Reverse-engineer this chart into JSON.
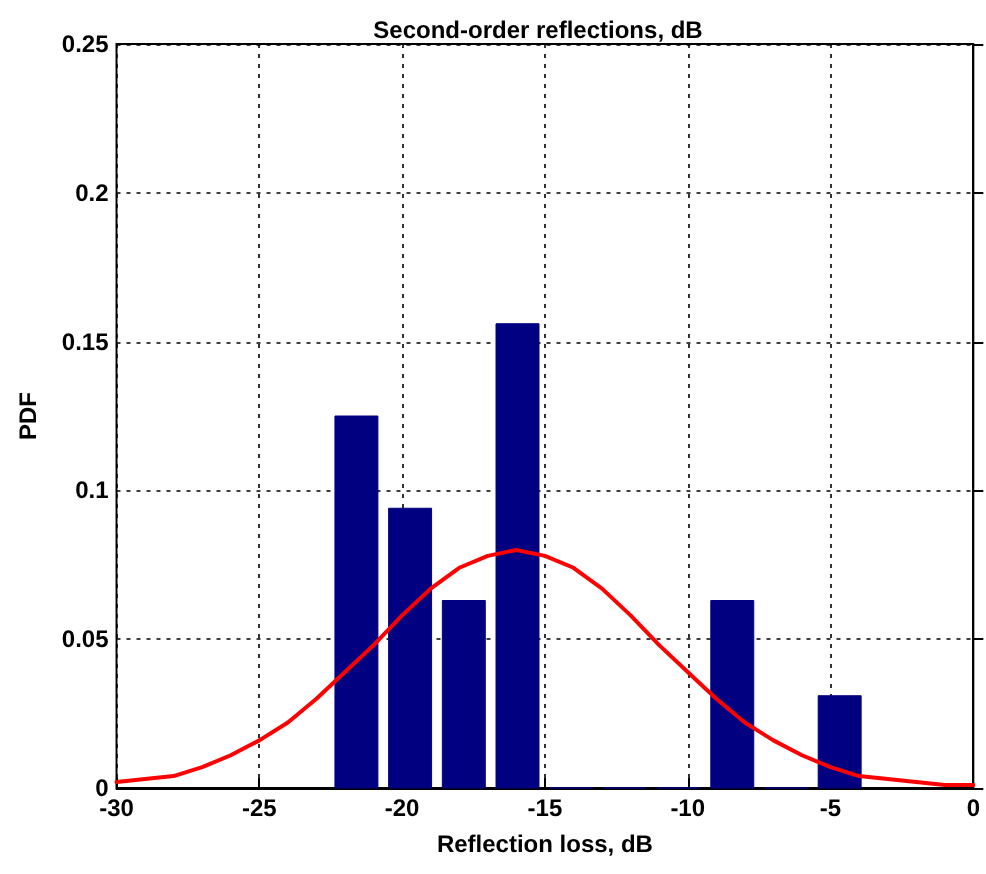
{
  "chart_data": {
    "type": "histogram",
    "title": "Second-order reflections, dB",
    "xlabel": "Reflection loss, dB",
    "ylabel": "PDF",
    "xlim": [
      -30,
      0
    ],
    "xticks": [
      -30,
      -25,
      -20,
      -15,
      -10,
      -5,
      0
    ],
    "ylim": [
      0,
      0.25
    ],
    "yticks": [
      0,
      0.05,
      0.1,
      0.15,
      0.2,
      0.25
    ],
    "grid": true,
    "marker": "none",
    "series": [
      {
        "color": "#000080",
        "bins": [
          -22.54,
          -20.66,
          -18.78,
          -16.9,
          -15.02,
          -13.14,
          -11.26,
          -9.38,
          -7.5,
          -5.62,
          -3.74
        ],
        "values": [
          0.125,
          0.094,
          0.063,
          0.156,
          0,
          0,
          0,
          0.063,
          0,
          0.031
        ]
      },
      {
        "type": "line",
        "color": "#ff0000",
        "x": [
          -30,
          -29,
          -28,
          -27,
          -26,
          -25,
          -24,
          -23,
          -22,
          -21,
          -20,
          -19,
          -18,
          -17,
          -16,
          -15,
          -14,
          -13,
          -12,
          -11,
          -10,
          -9,
          -8,
          -7,
          -6,
          -5,
          -4,
          -3,
          -2,
          -1,
          0
        ],
        "values": [
          0.002,
          0.003,
          0.004,
          0.007,
          0.011,
          0.016,
          0.022,
          0.03,
          0.039,
          0.048,
          0.058,
          0.067,
          0.074,
          0.078,
          0.08,
          0.078,
          0.074,
          0.067,
          0.058,
          0.048,
          0.039,
          0.03,
          0.022,
          0.016,
          0.011,
          0.007,
          0.004,
          0.003,
          0.002,
          0.001,
          0.001
        ]
      }
    ]
  }
}
